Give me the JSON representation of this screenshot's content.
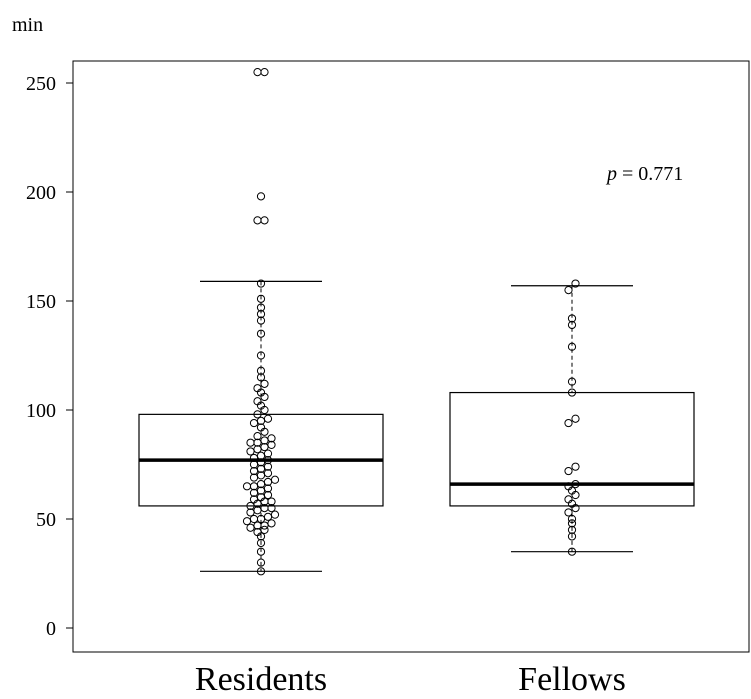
{
  "chart_data": {
    "type": "box",
    "y_unit_label": "min",
    "ylim": [
      -10,
      260
    ],
    "y_ticks": [
      0,
      50,
      100,
      150,
      200,
      250
    ],
    "categories": [
      "Residents",
      "Fellows"
    ],
    "annotation": {
      "p_symbol": "p",
      "p_rest": " = 0.771"
    },
    "series": [
      {
        "category": "Residents",
        "box": {
          "whisker_low": 26,
          "q1": 56,
          "median": 77,
          "q3": 98,
          "whisker_high": 159
        },
        "points": [
          26,
          30,
          35,
          39,
          42,
          44,
          45,
          46,
          47,
          47,
          48,
          49,
          50,
          50,
          51,
          52,
          53,
          54,
          55,
          55,
          56,
          57,
          58,
          58,
          59,
          60,
          61,
          62,
          63,
          64,
          65,
          65,
          66,
          67,
          68,
          69,
          70,
          71,
          72,
          73,
          74,
          75,
          76,
          77,
          78,
          79,
          80,
          81,
          82,
          83,
          84,
          85,
          85,
          86,
          87,
          88,
          90,
          92,
          94,
          95,
          96,
          98,
          100,
          102,
          104,
          106,
          108,
          110,
          112,
          115,
          118,
          125,
          135,
          141,
          144,
          147,
          151,
          158,
          187,
          187,
          198,
          255,
          255
        ]
      },
      {
        "category": "Fellows",
        "box": {
          "whisker_low": 35,
          "q1": 56,
          "median": 66,
          "q3": 108,
          "whisker_high": 157
        },
        "points": [
          35,
          42,
          45,
          48,
          50,
          53,
          55,
          57,
          59,
          61,
          63,
          65,
          66,
          72,
          74,
          94,
          96,
          108,
          113,
          129,
          139,
          142,
          155,
          158
        ]
      }
    ]
  }
}
